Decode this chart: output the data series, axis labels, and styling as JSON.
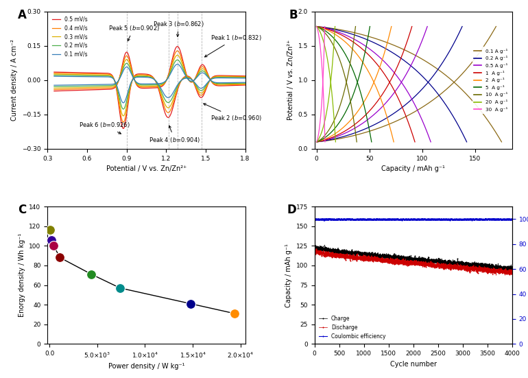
{
  "panel_A": {
    "title": "A",
    "xlabel": "Potential / V vs. Zn/Zn²⁺",
    "ylabel": "Current density / A cm⁻²",
    "xlim": [
      0.3,
      1.8
    ],
    "ylim": [
      -0.3,
      0.3
    ],
    "xticks": [
      0.3,
      0.6,
      0.9,
      1.2,
      1.5,
      1.8
    ],
    "yticks": [
      -0.3,
      -0.15,
      0.0,
      0.15,
      0.3
    ],
    "scan_rates": [
      "0.5 mV/s",
      "0.4 mV/s",
      "0.3 mV/s",
      "0.2 mV/s",
      "0.1 mV/s"
    ],
    "colors": [
      "#e41a1c",
      "#ff7f00",
      "#ddb000",
      "#4daf4a",
      "#377eb8"
    ],
    "scales": [
      1.0,
      0.87,
      0.74,
      0.6,
      0.47
    ]
  },
  "panel_B": {
    "title": "B",
    "xlabel": "Capacity / mAh g⁻¹",
    "ylabel": "Potential / V vs. Zn/Zn²⁺",
    "xlim": [
      -2,
      185
    ],
    "ylim": [
      0.0,
      2.0
    ],
    "xticks": [
      0,
      50,
      100,
      150
    ],
    "yticks": [
      0.0,
      0.5,
      1.0,
      1.5,
      2.0
    ],
    "rates": [
      "0.1 A g⁻¹",
      "0.2 A g⁻¹",
      "0.5 A g⁻¹",
      "1  A g⁻¹",
      "2  A g⁻¹",
      "5  A g⁻¹",
      "10  A g⁻¹",
      "20  A g⁻¹",
      "30  A g⁻¹"
    ],
    "colors": [
      "#8b6914",
      "#00008b",
      "#9900cc",
      "#cc0000",
      "#ff8800",
      "#006600",
      "#6b6b00",
      "#88bb00",
      "#ff44cc"
    ],
    "capacities": [
      175,
      142,
      108,
      93,
      73,
      52,
      38,
      18,
      8
    ]
  },
  "panel_C": {
    "title": "C",
    "xlabel": "Power density / W kg⁻¹",
    "ylabel": "Enorgy density / Wh kg⁻¹",
    "xlim": [
      -200,
      20500
    ],
    "ylim": [
      0,
      140
    ],
    "xticks": [
      0,
      5000,
      10000,
      15000,
      20000
    ],
    "yticks": [
      0,
      20,
      40,
      60,
      80,
      100,
      120,
      140
    ],
    "power": [
      80,
      180,
      450,
      1100,
      4400,
      7400,
      14800,
      19400
    ],
    "energy": [
      116,
      106,
      100,
      88,
      71,
      57,
      41,
      31
    ],
    "dot_colors": [
      "#808000",
      "#330099",
      "#aa0044",
      "#8b0000",
      "#228b22",
      "#008b8b",
      "#00008b",
      "#ff8c00"
    ]
  },
  "panel_D": {
    "title": "D",
    "xlabel": "Cycle number",
    "ylabel_left": "Capacity / mAh g⁻¹",
    "ylabel_right": "Coulombic efficiency / %",
    "xlim": [
      0,
      4000
    ],
    "ylim_left": [
      0,
      175
    ],
    "ylim_right": [
      0,
      110
    ],
    "yticks_left": [
      0,
      25,
      50,
      75,
      100,
      125,
      150,
      175
    ],
    "yticks_right": [
      0,
      20,
      40,
      60,
      80,
      100
    ],
    "charge_color": "#000000",
    "discharge_color": "#cc0000",
    "ce_color": "#0000cc",
    "charge_label": "Charge",
    "discharge_label": "Discharge",
    "ce_label": "Coulombic efficiency"
  }
}
